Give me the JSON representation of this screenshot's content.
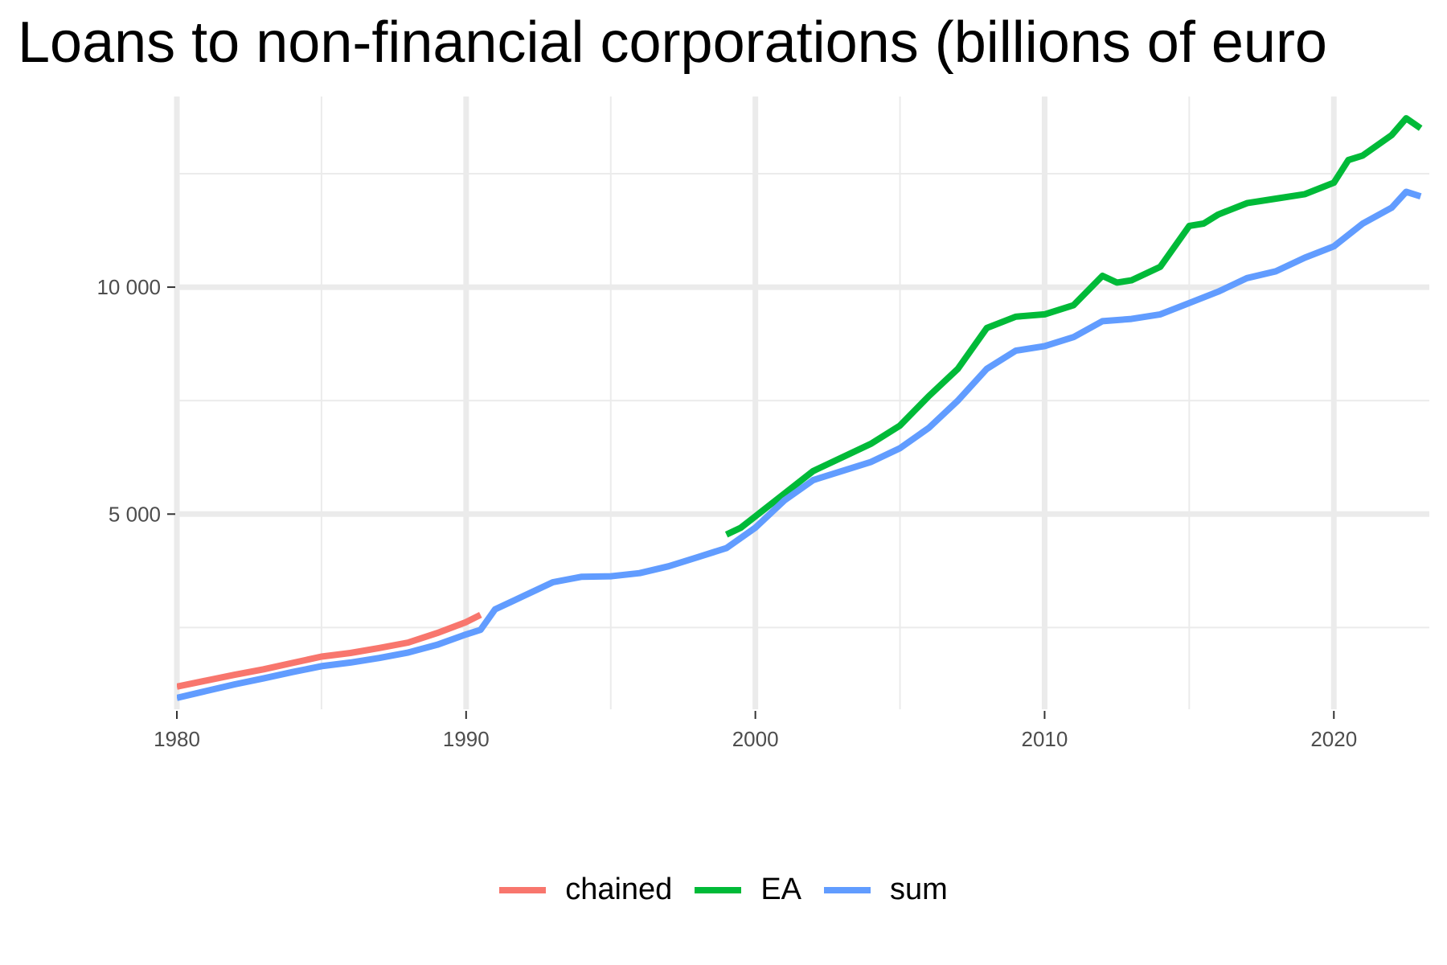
{
  "chart_data": {
    "type": "line",
    "title": "Loans to non-financial corporations (billions of euro",
    "xlabel": "",
    "ylabel": "",
    "xlim": [
      1980,
      2023.3
    ],
    "ylim": [
      700,
      14200
    ],
    "x_ticks": [
      1980,
      1990,
      2000,
      2010,
      2020
    ],
    "x_tick_labels": [
      "1980",
      "1990",
      "2000",
      "2010",
      "2020"
    ],
    "y_ticks": [
      5000,
      10000
    ],
    "y_tick_labels": [
      "5 000",
      "10 000"
    ],
    "grid": true,
    "legend_position": "bottom",
    "series": [
      {
        "name": "chained",
        "color": "#F8766D",
        "x": [
          1980,
          1981,
          1982,
          1983,
          1984,
          1985,
          1986,
          1987,
          1988,
          1989,
          1990,
          1990.5
        ],
        "values": [
          1200,
          1330,
          1460,
          1580,
          1720,
          1860,
          1940,
          2050,
          2170,
          2380,
          2620,
          2780
        ]
      },
      {
        "name": "EA",
        "color": "#00BA38",
        "x": [
          1999,
          1999.5,
          2000,
          2001,
          2002,
          2003,
          2004,
          2005,
          2006,
          2007,
          2008,
          2009,
          2010,
          2011,
          2012,
          2012.5,
          2013,
          2014,
          2015,
          2015.5,
          2016,
          2017,
          2018,
          2019,
          2020,
          2020.5,
          2021,
          2022,
          2022.5,
          2023
        ],
        "values": [
          4550,
          4700,
          4950,
          5450,
          5950,
          6250,
          6550,
          6950,
          7600,
          8200,
          9100,
          9350,
          9400,
          9600,
          10250,
          10100,
          10150,
          10450,
          11350,
          11400,
          11600,
          11850,
          11950,
          12050,
          12300,
          12800,
          12900,
          13350,
          13720,
          13500
        ]
      },
      {
        "name": "sum",
        "color": "#619CFF",
        "x": [
          1980,
          1981,
          1982,
          1983,
          1984,
          1985,
          1986,
          1987,
          1988,
          1989,
          1990,
          1990.5,
          1991,
          1992,
          1993,
          1994,
          1995,
          1996,
          1997,
          1998,
          1999,
          2000,
          2001,
          2002,
          2003,
          2004,
          2005,
          2006,
          2007,
          2008,
          2009,
          2010,
          2011,
          2012,
          2013,
          2014,
          2015,
          2016,
          2017,
          2018,
          2019,
          2020,
          2021,
          2022,
          2022.5,
          2023
        ],
        "values": [
          950,
          1100,
          1250,
          1380,
          1520,
          1650,
          1730,
          1830,
          1950,
          2120,
          2350,
          2450,
          2900,
          3200,
          3500,
          3620,
          3630,
          3700,
          3850,
          4050,
          4250,
          4700,
          5300,
          5750,
          5950,
          6150,
          6450,
          6900,
          7500,
          8200,
          8600,
          8700,
          8900,
          9250,
          9300,
          9400,
          9650,
          9900,
          10200,
          10350,
          10650,
          10900,
          11400,
          11750,
          12100,
          12000
        ]
      }
    ]
  }
}
